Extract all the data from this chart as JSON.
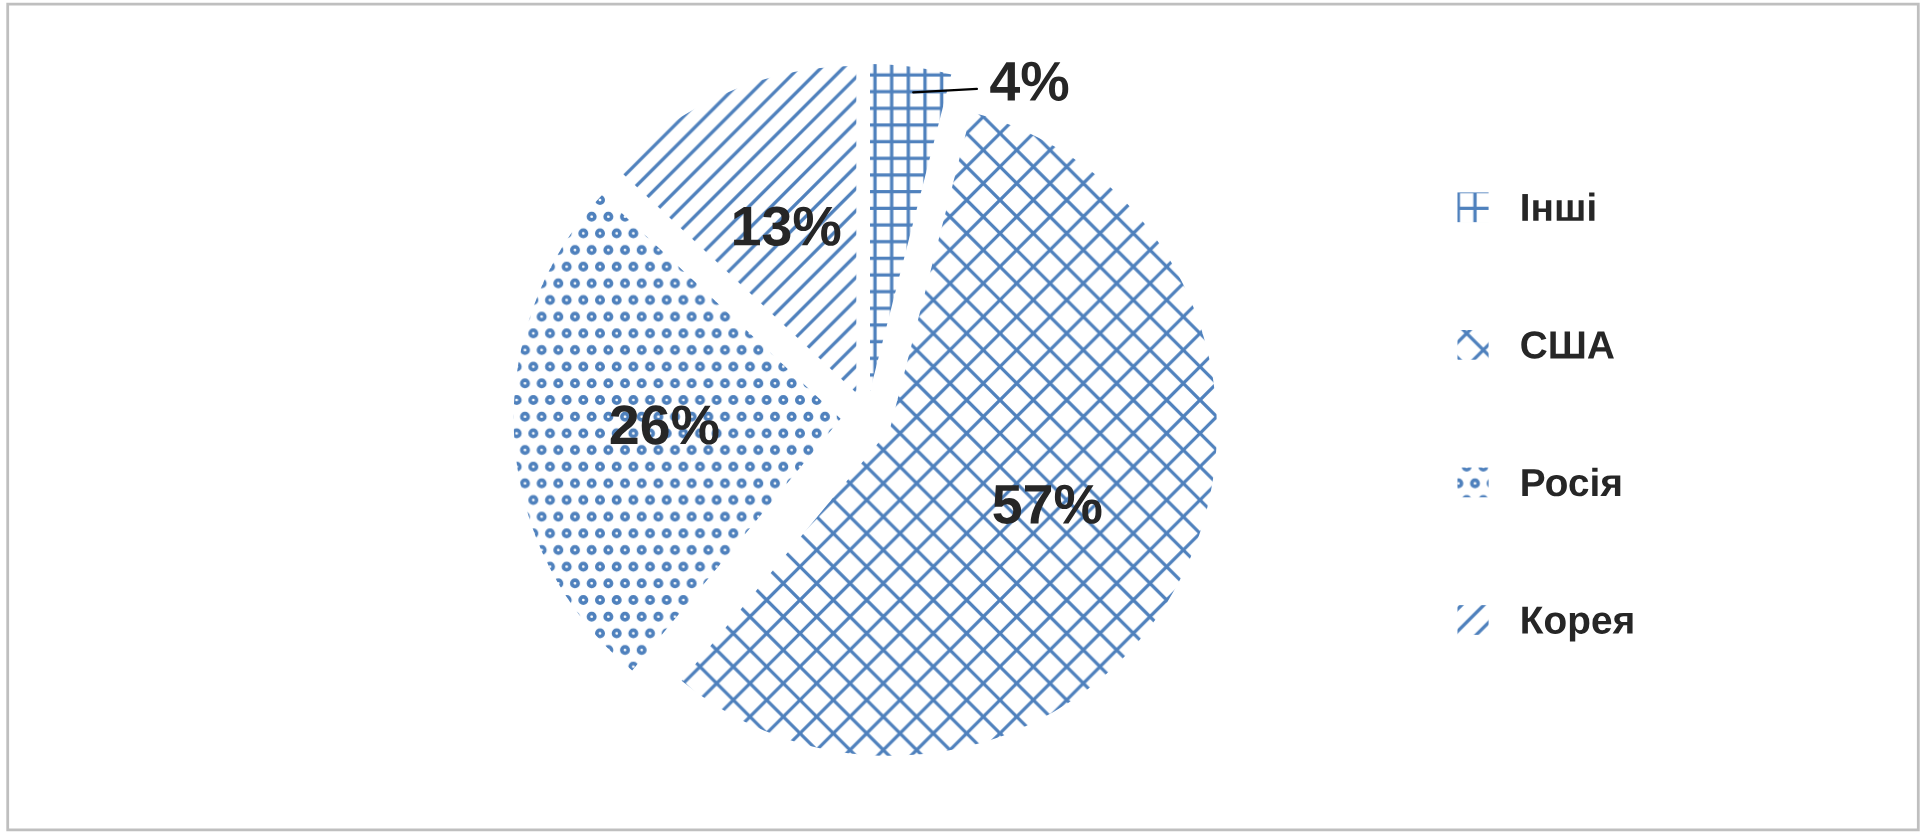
{
  "chart_data": {
    "type": "pie",
    "categories": [
      "Інші",
      "США",
      "Росія",
      "Корея"
    ],
    "values": [
      4,
      57,
      26,
      13
    ],
    "value_labels": [
      "4%",
      "57%",
      "26%",
      "13%"
    ],
    "colors": [
      "#4f81bd",
      "#4f81bd",
      "#4f81bd",
      "#4f81bd"
    ],
    "legend": "right"
  }
}
